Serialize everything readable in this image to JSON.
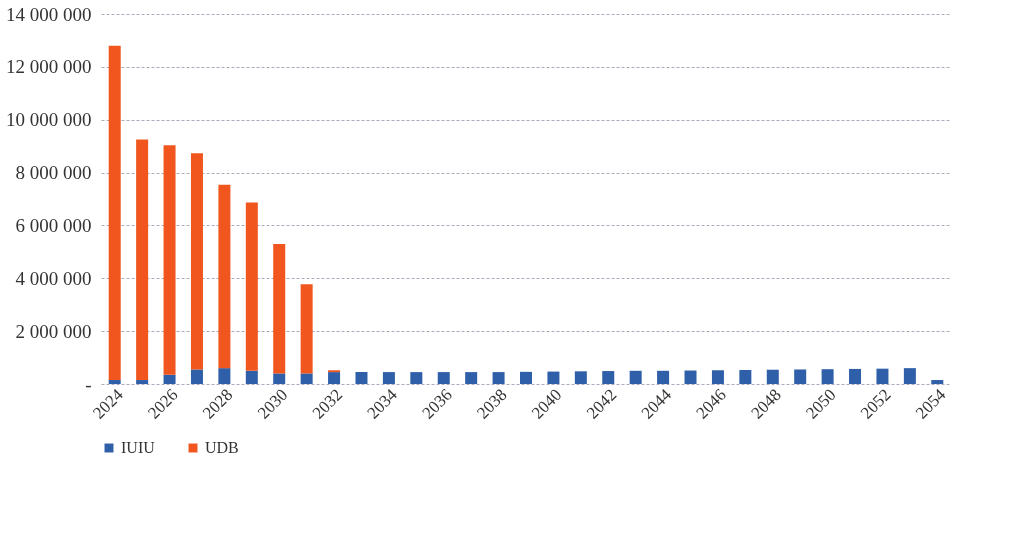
{
  "chart_data": {
    "type": "bar",
    "stacked": true,
    "categories": [
      "2024",
      null,
      "2026",
      null,
      "2028",
      null,
      "2030",
      null,
      "2032",
      null,
      "2034",
      null,
      "2036",
      null,
      "2038",
      null,
      "2040",
      null,
      "2042",
      null,
      "2044",
      null,
      "2046",
      null,
      "2048",
      null,
      "2050",
      null,
      "2052",
      null,
      "2054"
    ],
    "series": [
      {
        "name": "IUIU",
        "color": "#2e5fa8",
        "values": [
          150000,
          150000,
          350000,
          550000,
          600000,
          500000,
          400000,
          400000,
          450000,
          450000,
          450000,
          450000,
          450000,
          450000,
          450000,
          460000,
          470000,
          480000,
          490000,
          500000,
          500000,
          510000,
          520000,
          530000,
          540000,
          550000,
          560000,
          570000,
          580000,
          600000,
          150000
        ]
      },
      {
        "name": "UDB",
        "color": "#f0561e",
        "values": [
          12650000,
          9100000,
          8680000,
          8180000,
          6940000,
          6370000,
          4900000,
          3370000,
          70000,
          0,
          0,
          0,
          0,
          0,
          0,
          0,
          0,
          0,
          0,
          0,
          0,
          0,
          0,
          0,
          0,
          0,
          0,
          0,
          0,
          0,
          0
        ]
      }
    ],
    "ylim": [
      0,
      14000000
    ],
    "yticks": [
      {
        "value": 0,
        "label": "-"
      },
      {
        "value": 2000000,
        "label": "2 000 000"
      },
      {
        "value": 4000000,
        "label": "4 000 000"
      },
      {
        "value": 6000000,
        "label": "6 000 000"
      },
      {
        "value": 8000000,
        "label": "8 000 000"
      },
      {
        "value": 10000000,
        "label": "10 000 000"
      },
      {
        "value": 12000000,
        "label": "12 000 000"
      },
      {
        "value": 14000000,
        "label": "14 000 000"
      }
    ],
    "grid": "y",
    "legend": "bottom"
  }
}
